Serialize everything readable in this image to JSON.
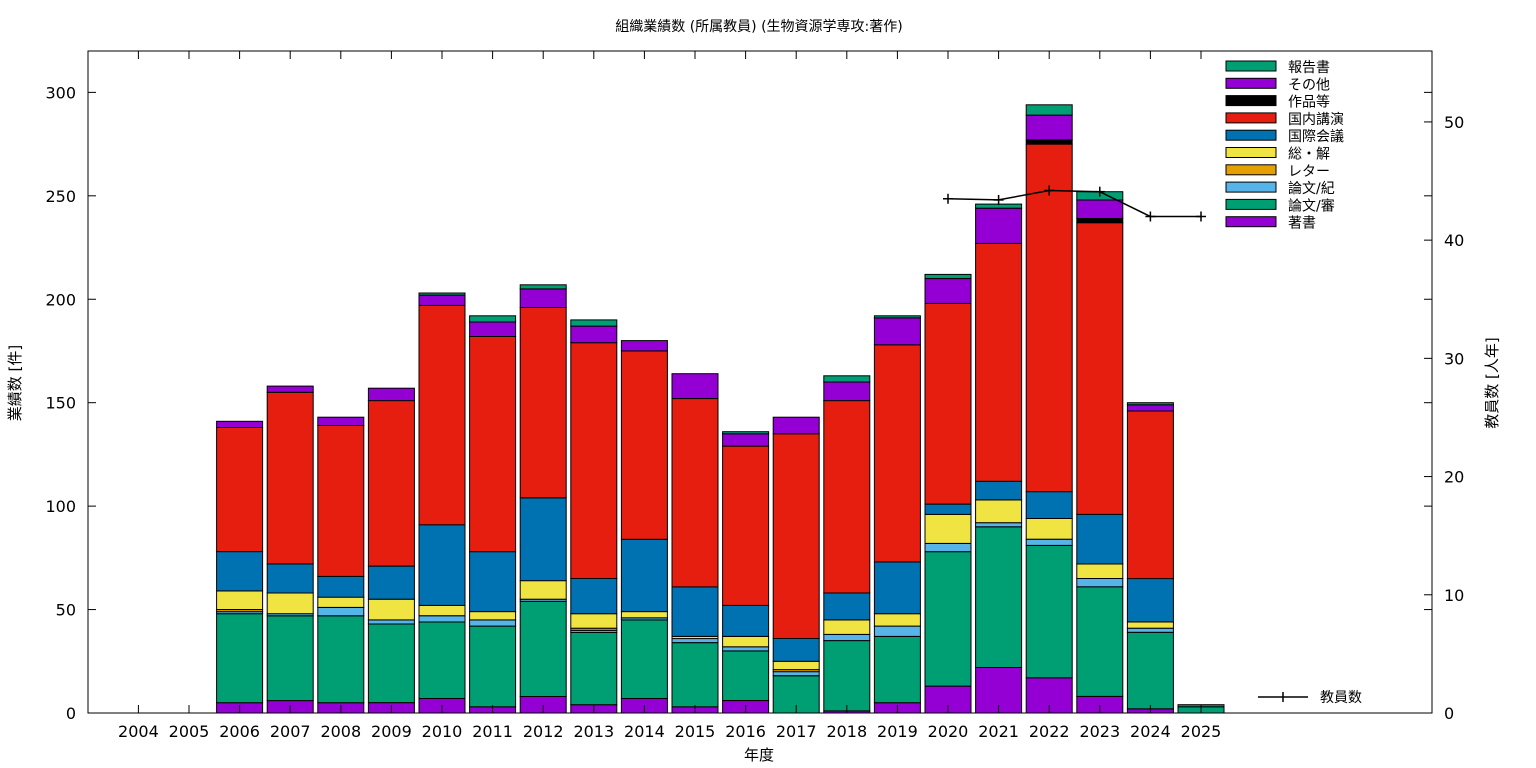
{
  "chart_data": {
    "type": "bar",
    "stacked": true,
    "title": "組織業績数 (所属教員) (生物資源学専攻:著作)",
    "xlabel": "年度",
    "ylabel": "業績数 [件]",
    "y2label": "教員数 [人年]",
    "categories": [
      "2004",
      "2005",
      "2006",
      "2007",
      "2008",
      "2009",
      "2010",
      "2011",
      "2012",
      "2013",
      "2014",
      "2015",
      "2016",
      "2017",
      "2018",
      "2019",
      "2020",
      "2021",
      "2022",
      "2023",
      "2024",
      "2025"
    ],
    "ylim": [
      0,
      320
    ],
    "yticks": [
      0,
      50,
      100,
      150,
      200,
      250,
      300
    ],
    "y2lim": [
      0,
      56
    ],
    "y2ticks": [
      0,
      10,
      20,
      30,
      40,
      50
    ],
    "legend_position": "top-right",
    "series": [
      {
        "name": "著書",
        "color": "#9400d3",
        "values": [
          0,
          0,
          5,
          6,
          5,
          5,
          7,
          3,
          8,
          4,
          7,
          3,
          6,
          0,
          1,
          5,
          13,
          22,
          17,
          8,
          2,
          0
        ]
      },
      {
        "name": "論文/審",
        "color": "#009e73",
        "values": [
          0,
          0,
          43,
          41,
          42,
          38,
          37,
          39,
          46,
          35,
          38,
          31,
          24,
          18,
          34,
          32,
          65,
          68,
          64,
          53,
          37,
          3
        ]
      },
      {
        "name": "論文/紀",
        "color": "#56b4e9",
        "values": [
          0,
          0,
          1,
          1,
          4,
          2,
          3,
          3,
          1,
          1,
          1,
          2,
          2,
          2,
          3,
          5,
          4,
          2,
          3,
          4,
          2,
          0
        ]
      },
      {
        "name": "レター",
        "color": "#e69f00",
        "values": [
          0,
          0,
          1,
          0,
          0,
          0,
          0,
          0,
          0,
          1,
          0,
          0,
          0,
          1,
          0,
          0,
          0,
          0,
          0,
          0,
          0,
          0
        ]
      },
      {
        "name": "総・解",
        "color": "#f0e442",
        "values": [
          0,
          0,
          9,
          10,
          5,
          10,
          5,
          4,
          9,
          7,
          3,
          1,
          5,
          4,
          7,
          6,
          14,
          11,
          10,
          7,
          3,
          0
        ]
      },
      {
        "name": "国際会議",
        "color": "#0072b2",
        "values": [
          0,
          0,
          19,
          14,
          10,
          16,
          39,
          29,
          40,
          17,
          35,
          24,
          15,
          11,
          13,
          25,
          5,
          9,
          13,
          24,
          21,
          0
        ]
      },
      {
        "name": "国内講演",
        "color": "#e51e10",
        "values": [
          0,
          0,
          60,
          83,
          73,
          80,
          106,
          104,
          92,
          114,
          91,
          91,
          77,
          99,
          93,
          105,
          97,
          115,
          168,
          141,
          81,
          0
        ]
      },
      {
        "name": "作品等",
        "color": "#000000",
        "values": [
          0,
          0,
          0,
          0,
          0,
          0,
          0,
          0,
          0,
          0,
          0,
          0,
          0,
          0,
          0,
          0,
          0,
          0,
          2,
          2,
          0,
          0
        ]
      },
      {
        "name": "その他",
        "color": "#9400d3",
        "values": [
          0,
          0,
          3,
          3,
          4,
          6,
          5,
          7,
          9,
          8,
          5,
          12,
          6,
          8,
          9,
          13,
          12,
          17,
          12,
          9,
          3,
          0
        ]
      },
      {
        "name": "報告書",
        "color": "#009e73",
        "values": [
          0,
          0,
          0,
          0,
          0,
          0,
          1,
          3,
          2,
          3,
          0,
          0,
          1,
          0,
          3,
          1,
          2,
          2,
          5,
          4,
          1,
          1
        ]
      }
    ],
    "line": {
      "name": "教員数",
      "axis": "y2",
      "color": "#000000",
      "categories": [
        "2020",
        "2021",
        "2022",
        "2023",
        "2024",
        "2025"
      ],
      "values": [
        43.5,
        43.4,
        44.2,
        44.1,
        42.0,
        42.0
      ]
    }
  }
}
